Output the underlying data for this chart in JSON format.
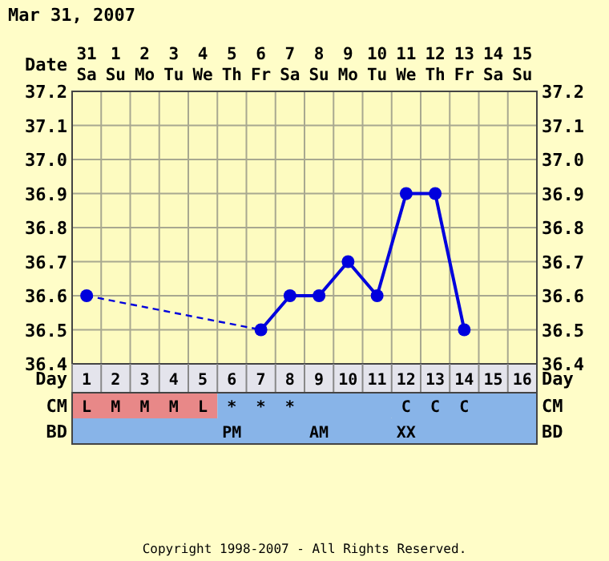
{
  "chart_data": [
    {
      "type": "line",
      "title": "Mar 31, 2007",
      "xlabel": "Date",
      "categories": [
        "31 Sa",
        "1 Su",
        "2 Mo",
        "3 Tu",
        "4 We",
        "5 Th",
        "6 Fr",
        "7 Sa",
        "8 Su",
        "9 Mo",
        "10 Tu",
        "11 We",
        "12 Th",
        "13 Fr",
        "14 Sa",
        "15 Su"
      ],
      "series": [
        {
          "color": "#0000dd",
          "values": [
            36.6,
            null,
            null,
            null,
            null,
            null,
            36.5,
            36.6,
            36.6,
            36.7,
            36.6,
            36.9,
            36.9,
            36.5,
            null,
            null
          ]
        }
      ],
      "ylim": [
        36.4,
        37.2
      ],
      "yticks": [
        36.4,
        36.5,
        36.6,
        36.7,
        36.8,
        36.9,
        {
          "value": 37,
          "label": "37.0"
        },
        37.1,
        37.2
      ],
      "y2lim": [
        36.4,
        37.2
      ],
      "y2ticks": [
        36.4,
        36.5,
        36.6,
        36.7,
        36.8,
        36.9,
        {
          "value": 37,
          "label": "37.0"
        },
        37.1,
        37.2
      ],
      "x2label": "Day",
      "x2lim": [
        0.5,
        16.5
      ],
      "x2ticks": [
        1,
        2,
        3,
        4,
        5,
        6,
        7,
        8,
        9,
        10,
        11,
        12,
        13,
        14,
        15,
        16
      ],
      "grid": true,
      "marker": "circle",
      "line_style": "solid",
      "annotations": [
        "Copyright 1998-2007 - All Rights Reserved."
      ]
    },
    {
      "type": "other",
      "y_categories": [
        "CM",
        "BD"
      ],
      "y2_categories": [
        "CM",
        "BD"
      ],
      "cell_labels": [
        [
          "L",
          "M",
          "M",
          "M",
          "L",
          "*",
          "*",
          "*",
          null,
          null,
          null,
          "C",
          "C",
          "C",
          null,
          null
        ],
        [
          null,
          null,
          null,
          null,
          null,
          "PM",
          null,
          null,
          "AM",
          null,
          null,
          "XX",
          null,
          null,
          null,
          null
        ]
      ],
      "colors": [
        [
          "#e88888",
          "#e88888",
          "#e88888",
          "#e88888",
          "#e88888",
          "#88b4e8",
          "#88b4e8",
          "#88b4e8",
          "#88b4e8",
          "#88b4e8",
          "#88b4e8",
          "#88b4e8",
          "#88b4e8",
          "#88b4e8",
          "#88b4e8",
          "#88b4e8"
        ],
        [
          "#88b4e8",
          "#88b4e8",
          "#88b4e8",
          "#88b4e8",
          "#88b4e8",
          "#88b4e8",
          "#88b4e8",
          "#88b4e8",
          "#88b4e8",
          "#88b4e8",
          "#88b4e8",
          "#88b4e8",
          "#88b4e8",
          "#88b4e8",
          "#88b4e8",
          "#88b4e8"
        ]
      ]
    }
  ]
}
